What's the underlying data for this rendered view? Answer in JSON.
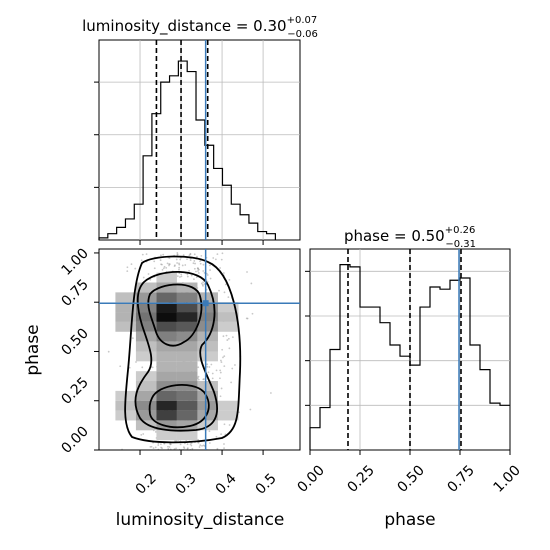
{
  "chart_data": [
    {
      "type": "histogram",
      "panel": "luminosity_distance-1d",
      "title_name": "luminosity_distance",
      "title_value": "0.30",
      "title_upper": "+0.07",
      "title_lower": "−0.06",
      "x_range": [
        0.1,
        0.59
      ],
      "bin_edges": [
        0.1,
        0.1215,
        0.143,
        0.1645,
        0.186,
        0.2075,
        0.229,
        0.2505,
        0.272,
        0.2935,
        0.315,
        0.3365,
        0.358,
        0.3795,
        0.401,
        0.4225,
        0.444,
        0.4655,
        0.487,
        0.5085,
        0.53
      ],
      "counts": [
        1,
        3,
        6,
        10,
        17,
        40,
        60,
        75,
        78,
        85,
        80,
        57,
        45,
        34,
        26,
        17,
        12,
        8,
        4,
        3
      ],
      "quantile_lines": [
        0.24,
        0.3,
        0.365
      ],
      "truth": 0.36,
      "grid": true
    },
    {
      "type": "histogram",
      "panel": "phase-1d",
      "title_name": "phase",
      "title_value": "0.50",
      "title_upper": "+0.26",
      "title_lower": "−0.31",
      "x_range": [
        0.0,
        1.0
      ],
      "bin_edges": [
        0.0,
        0.05,
        0.1,
        0.15,
        0.2,
        0.25,
        0.3,
        0.35,
        0.4,
        0.45,
        0.5,
        0.55,
        0.6,
        0.65,
        0.7,
        0.75,
        0.8,
        0.85,
        0.9,
        0.95,
        1.0
      ],
      "counts": [
        10,
        19,
        45,
        83,
        82,
        64,
        64,
        57,
        47,
        42,
        38,
        64,
        73,
        72,
        76,
        77,
        47,
        36,
        21,
        20
      ],
      "quantile_lines": [
        0.19,
        0.5,
        0.755
      ],
      "truth": 0.745,
      "x_ticks": [
        "0.00",
        "0.25",
        "0.50",
        "0.75",
        "1.00"
      ],
      "xlabel": "phase",
      "grid": true
    },
    {
      "type": "2d-density",
      "panel": "phase-vs-luminosity_distance",
      "x_range": [
        0.1,
        0.59
      ],
      "y_range": [
        0.0,
        1.02
      ],
      "x_ticks": [
        "0.2",
        "0.3",
        "0.4",
        "0.5"
      ],
      "y_ticks": [
        "0.00",
        "0.25",
        "0.50",
        "0.75",
        "1.00"
      ],
      "xlabel": "luminosity_distance",
      "ylabel": "phase",
      "truth": {
        "x": 0.36,
        "y": 0.745
      },
      "density_cells": [
        {
          "x": 0.165,
          "y": 0.625,
          "v": 0.25
        },
        {
          "x": 0.165,
          "y": 0.675,
          "v": 0.3
        },
        {
          "x": 0.165,
          "y": 0.725,
          "v": 0.3
        },
        {
          "x": 0.165,
          "y": 0.775,
          "v": 0.25
        },
        {
          "x": 0.165,
          "y": 0.175,
          "v": 0.2
        },
        {
          "x": 0.165,
          "y": 0.225,
          "v": 0.25
        },
        {
          "x": 0.165,
          "y": 0.275,
          "v": 0.2
        },
        {
          "x": 0.215,
          "y": 0.575,
          "v": 0.35
        },
        {
          "x": 0.215,
          "y": 0.625,
          "v": 0.5
        },
        {
          "x": 0.215,
          "y": 0.675,
          "v": 0.55
        },
        {
          "x": 0.215,
          "y": 0.725,
          "v": 0.5
        },
        {
          "x": 0.215,
          "y": 0.775,
          "v": 0.4
        },
        {
          "x": 0.215,
          "y": 0.825,
          "v": 0.25
        },
        {
          "x": 0.215,
          "y": 0.525,
          "v": 0.25
        },
        {
          "x": 0.215,
          "y": 0.475,
          "v": 0.2
        },
        {
          "x": 0.215,
          "y": 0.375,
          "v": 0.2
        },
        {
          "x": 0.215,
          "y": 0.325,
          "v": 0.25
        },
        {
          "x": 0.215,
          "y": 0.275,
          "v": 0.35
        },
        {
          "x": 0.215,
          "y": 0.225,
          "v": 0.45
        },
        {
          "x": 0.215,
          "y": 0.175,
          "v": 0.4
        },
        {
          "x": 0.215,
          "y": 0.125,
          "v": 0.25
        },
        {
          "x": 0.265,
          "y": 0.575,
          "v": 0.5
        },
        {
          "x": 0.265,
          "y": 0.625,
          "v": 0.7
        },
        {
          "x": 0.265,
          "y": 0.675,
          "v": 0.95
        },
        {
          "x": 0.265,
          "y": 0.725,
          "v": 0.9
        },
        {
          "x": 0.265,
          "y": 0.775,
          "v": 0.6
        },
        {
          "x": 0.265,
          "y": 0.825,
          "v": 0.35
        },
        {
          "x": 0.265,
          "y": 0.875,
          "v": 0.2
        },
        {
          "x": 0.265,
          "y": 0.525,
          "v": 0.35
        },
        {
          "x": 0.265,
          "y": 0.475,
          "v": 0.3
        },
        {
          "x": 0.265,
          "y": 0.425,
          "v": 0.3
        },
        {
          "x": 0.265,
          "y": 0.375,
          "v": 0.35
        },
        {
          "x": 0.265,
          "y": 0.325,
          "v": 0.45
        },
        {
          "x": 0.265,
          "y": 0.275,
          "v": 0.6
        },
        {
          "x": 0.265,
          "y": 0.225,
          "v": 0.85
        },
        {
          "x": 0.265,
          "y": 0.175,
          "v": 0.75
        },
        {
          "x": 0.265,
          "y": 0.125,
          "v": 0.4
        },
        {
          "x": 0.265,
          "y": 0.075,
          "v": 0.2
        },
        {
          "x": 0.315,
          "y": 0.575,
          "v": 0.45
        },
        {
          "x": 0.315,
          "y": 0.625,
          "v": 0.65
        },
        {
          "x": 0.315,
          "y": 0.675,
          "v": 0.85
        },
        {
          "x": 0.315,
          "y": 0.725,
          "v": 0.7
        },
        {
          "x": 0.315,
          "y": 0.775,
          "v": 0.5
        },
        {
          "x": 0.315,
          "y": 0.825,
          "v": 0.3
        },
        {
          "x": 0.315,
          "y": 0.525,
          "v": 0.35
        },
        {
          "x": 0.315,
          "y": 0.475,
          "v": 0.3
        },
        {
          "x": 0.315,
          "y": 0.425,
          "v": 0.3
        },
        {
          "x": 0.315,
          "y": 0.375,
          "v": 0.35
        },
        {
          "x": 0.315,
          "y": 0.325,
          "v": 0.45
        },
        {
          "x": 0.315,
          "y": 0.275,
          "v": 0.55
        },
        {
          "x": 0.315,
          "y": 0.225,
          "v": 0.65
        },
        {
          "x": 0.315,
          "y": 0.175,
          "v": 0.6
        },
        {
          "x": 0.315,
          "y": 0.125,
          "v": 0.35
        },
        {
          "x": 0.315,
          "y": 0.075,
          "v": 0.2
        },
        {
          "x": 0.365,
          "y": 0.575,
          "v": 0.3
        },
        {
          "x": 0.365,
          "y": 0.625,
          "v": 0.45
        },
        {
          "x": 0.365,
          "y": 0.675,
          "v": 0.5
        },
        {
          "x": 0.365,
          "y": 0.725,
          "v": 0.45
        },
        {
          "x": 0.365,
          "y": 0.775,
          "v": 0.3
        },
        {
          "x": 0.365,
          "y": 0.525,
          "v": 0.25
        },
        {
          "x": 0.365,
          "y": 0.475,
          "v": 0.2
        },
        {
          "x": 0.365,
          "y": 0.325,
          "v": 0.25
        },
        {
          "x": 0.365,
          "y": 0.275,
          "v": 0.35
        },
        {
          "x": 0.365,
          "y": 0.225,
          "v": 0.4
        },
        {
          "x": 0.365,
          "y": 0.175,
          "v": 0.35
        },
        {
          "x": 0.365,
          "y": 0.125,
          "v": 0.2
        },
        {
          "x": 0.415,
          "y": 0.625,
          "v": 0.2
        },
        {
          "x": 0.415,
          "y": 0.675,
          "v": 0.25
        },
        {
          "x": 0.415,
          "y": 0.725,
          "v": 0.2
        },
        {
          "x": 0.415,
          "y": 0.225,
          "v": 0.2
        },
        {
          "x": 0.415,
          "y": 0.175,
          "v": 0.2
        }
      ],
      "grid": false
    }
  ]
}
